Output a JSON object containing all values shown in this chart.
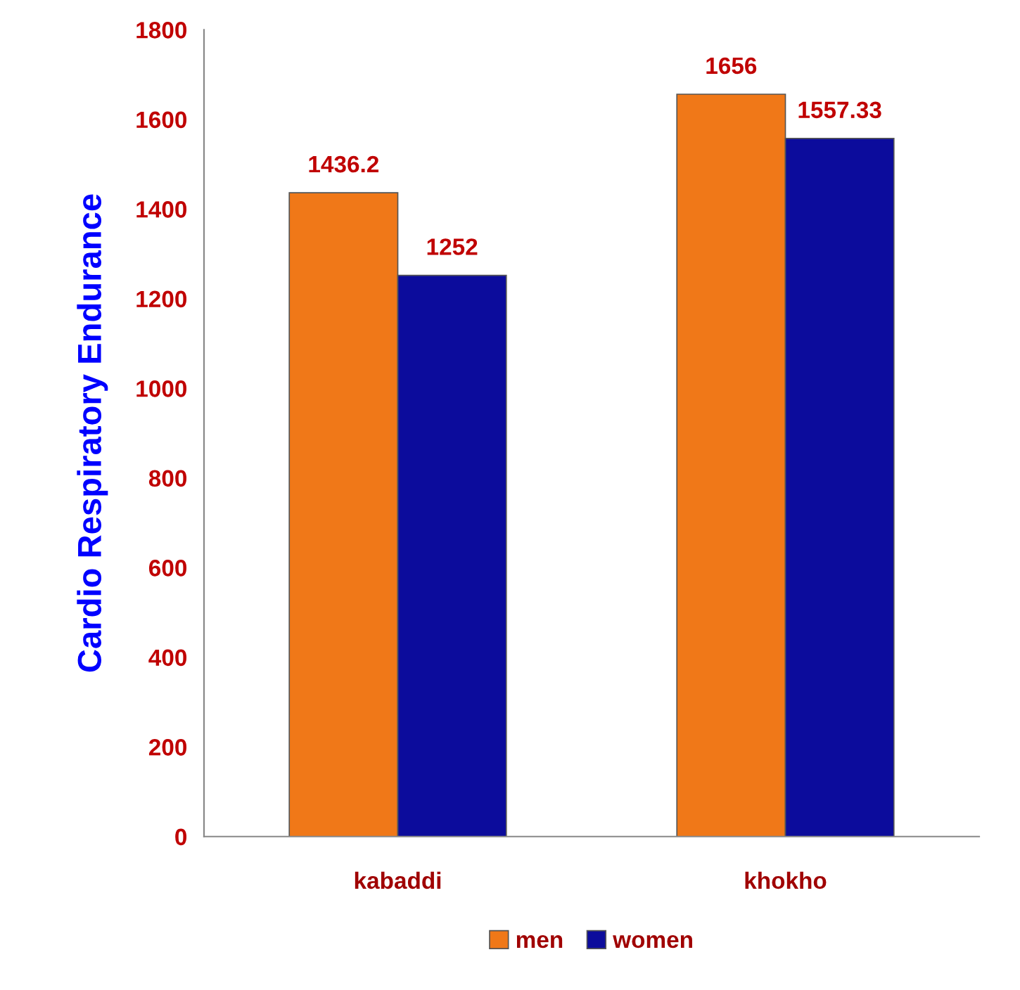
{
  "chart_data": {
    "type": "bar",
    "ylabel": "Cardio Respiratory Endurance",
    "categories": [
      "kabaddi",
      "khokho"
    ],
    "series": [
      {
        "name": "men",
        "color": "#f07818",
        "values": [
          1436.2,
          1656
        ],
        "value_labels": [
          "1436.2",
          "1656"
        ]
      },
      {
        "name": "women",
        "color": "#0c0c9c",
        "values": [
          1252,
          1557.33
        ],
        "value_labels": [
          "1252",
          "1557.33"
        ]
      }
    ],
    "ylim": [
      0,
      1800
    ],
    "yticks": [
      0,
      200,
      400,
      600,
      800,
      1000,
      1200,
      1400,
      1600,
      1800
    ],
    "grid": false,
    "legend": "bottom"
  }
}
